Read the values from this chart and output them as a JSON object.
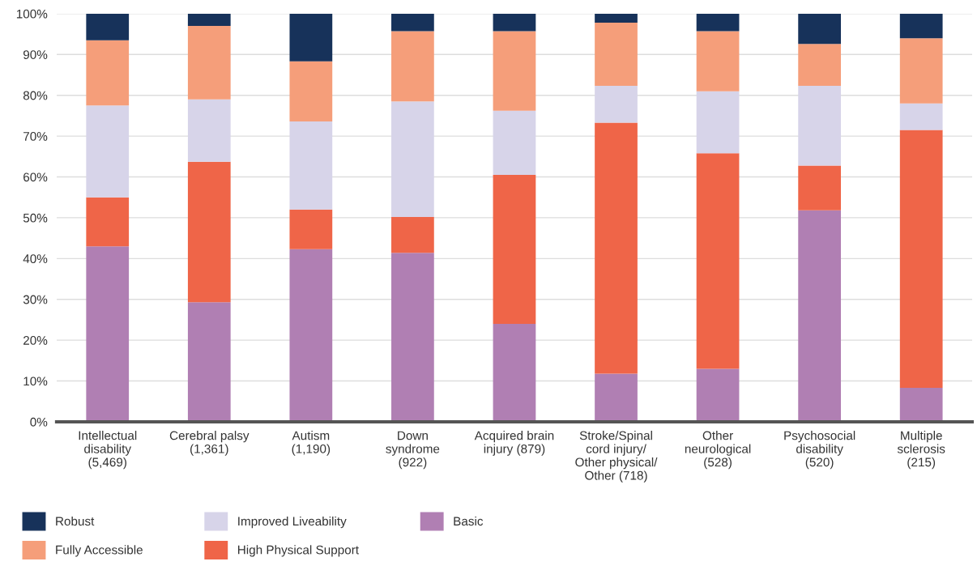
{
  "chart_data": {
    "type": "bar",
    "stacked": true,
    "categories": [
      "Intellectual\ndisability\n(5,469)",
      "Cerebral palsy\n(1,361)",
      "Autism\n(1,190)",
      "Down\nsyndrome\n(922)",
      "Acquired brain\ninjury (879)",
      "Stroke/Spinal\ncord injury/\nOther physical/\nOther (718)",
      "Other\nneurological\n(528)",
      "Psychosocial\ndisability\n(520)",
      "Multiple\nsclerosis\n(215)"
    ],
    "series": [
      {
        "name": "Basic",
        "color": "#b07fb3",
        "values": [
          43,
          29.3,
          42.3,
          41.4,
          24,
          11.8,
          13,
          51.8,
          8.3
        ]
      },
      {
        "name": "High Physical Support",
        "color": "#ef6548",
        "values": [
          12,
          34.4,
          9.7,
          8.8,
          36.5,
          61.5,
          52.8,
          11,
          63.2
        ]
      },
      {
        "name": "Improved Liveability",
        "color": "#d7d4e9",
        "values": [
          22.5,
          15.3,
          21.6,
          28.3,
          15.7,
          9,
          15.2,
          19.5,
          6.5
        ]
      },
      {
        "name": "Fully Accessible",
        "color": "#f59e7a",
        "values": [
          16,
          18,
          14.7,
          17.2,
          19.5,
          15.5,
          14.7,
          10.3,
          16
        ]
      },
      {
        "name": "Robust",
        "color": "#17325a",
        "values": [
          6.5,
          3,
          11.7,
          4.3,
          4.3,
          2.2,
          4.3,
          7.4,
          6
        ]
      }
    ],
    "ylim": [
      0,
      100
    ],
    "yticks": [
      {
        "value": 0,
        "label": "0%"
      },
      {
        "value": 10,
        "label": "10%"
      },
      {
        "value": 20,
        "label": "20%"
      },
      {
        "value": 30,
        "label": "30%"
      },
      {
        "value": 40,
        "label": "40%"
      },
      {
        "value": 50,
        "label": "50%"
      },
      {
        "value": 60,
        "label": "60%"
      },
      {
        "value": 70,
        "label": "70%"
      },
      {
        "value": 80,
        "label": "80%"
      },
      {
        "value": 90,
        "label": "90%"
      },
      {
        "value": 100,
        "label": "100%"
      }
    ],
    "grid": "y",
    "legend": "bottom"
  }
}
